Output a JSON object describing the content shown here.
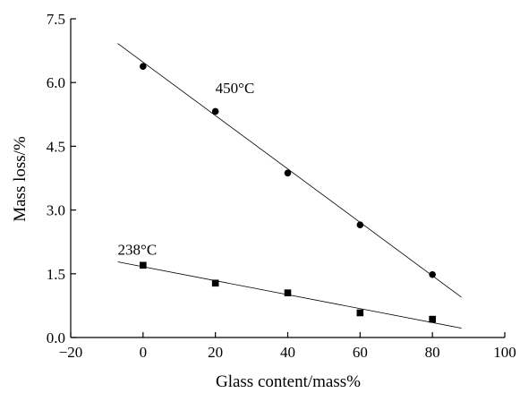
{
  "chart_data": {
    "type": "scatter",
    "title": "",
    "xlabel": "Glass content/mass%",
    "ylabel": "Mass loss/%",
    "xlim": [
      -20,
      100
    ],
    "ylim": [
      0,
      7.5
    ],
    "xticks": [
      -20,
      0,
      20,
      40,
      60,
      80,
      100
    ],
    "xtick_labels": [
      "−20",
      "0",
      "20",
      "40",
      "60",
      "80",
      "100"
    ],
    "yticks": [
      0,
      1.5,
      3.0,
      4.5,
      6.0,
      7.5
    ],
    "ytick_labels": [
      "0.0",
      "1.5",
      "3.0",
      "4.5",
      "6.0",
      "7.5"
    ],
    "grid": false,
    "series": [
      {
        "name": "450°C",
        "marker": "circle",
        "x": [
          0,
          20,
          40,
          60,
          80
        ],
        "y": [
          6.38,
          5.32,
          3.87,
          2.65,
          1.48
        ],
        "fit": {
          "x": [
            -7,
            88
          ],
          "y": [
            6.92,
            0.95
          ]
        }
      },
      {
        "name": "238°C",
        "marker": "square",
        "x": [
          0,
          20,
          40,
          60,
          80
        ],
        "y": [
          1.7,
          1.28,
          1.05,
          0.58,
          0.43
        ],
        "fit": {
          "x": [
            -7,
            88
          ],
          "y": [
            1.78,
            0.22
          ]
        }
      }
    ],
    "annotations": [
      {
        "text": "450°C",
        "x": 20,
        "y": 5.75,
        "series": 0
      },
      {
        "text": "238°C",
        "x": -7,
        "y": 1.95,
        "series": 1
      }
    ],
    "colors": {
      "marks": "#000000"
    }
  }
}
